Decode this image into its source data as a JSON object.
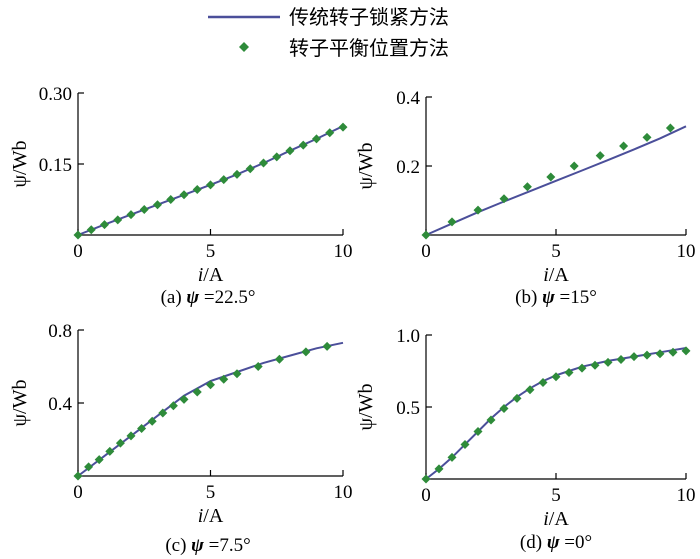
{
  "legend": [
    {
      "label": "传统转子锁紧方法",
      "kind": "line",
      "color": "#4b4f9a"
    },
    {
      "label": "转子平衡位置方法",
      "kind": "marker",
      "color": "#2e8b3a"
    }
  ],
  "chart_data": [
    {
      "type": "line",
      "caption": "(a) ψ =22.5°",
      "caption_prefix": "(a) ",
      "caption_symbol": "ψ",
      "caption_suffix": " =22.5°",
      "xlabel_var": "i",
      "xlabel_unit": "/A",
      "ylabel": "ψ/Wb",
      "xlim": [
        0,
        10
      ],
      "ylim": [
        0,
        0.3
      ],
      "xticks": [
        0,
        5,
        10
      ],
      "yticks": [
        0.15,
        0.3
      ],
      "xtick_labels": [
        "0",
        "5",
        "10"
      ],
      "ytick_labels": [
        "0.15",
        "0.30"
      ],
      "series": [
        {
          "name": "传统转子锁紧方法",
          "type": "line",
          "x": [
            0,
            1,
            2,
            3,
            4,
            5,
            6,
            7,
            8,
            9,
            10
          ],
          "y": [
            0.0,
            0.022,
            0.043,
            0.064,
            0.085,
            0.106,
            0.128,
            0.152,
            0.178,
            0.203,
            0.23
          ]
        },
        {
          "name": "转子平衡位置方法",
          "type": "scatter",
          "x": [
            0,
            0.5,
            1.0,
            1.5,
            2.0,
            2.5,
            3.0,
            3.5,
            4.0,
            4.5,
            5.0,
            5.5,
            6.0,
            6.5,
            7.0,
            7.5,
            8.0,
            8.5,
            9.0,
            9.5,
            10.0
          ],
          "y": [
            0.0,
            0.011,
            0.022,
            0.032,
            0.043,
            0.054,
            0.064,
            0.075,
            0.085,
            0.096,
            0.106,
            0.117,
            0.128,
            0.14,
            0.152,
            0.165,
            0.178,
            0.19,
            0.203,
            0.216,
            0.228
          ]
        }
      ]
    },
    {
      "type": "line",
      "caption": "(b) ψ =15°",
      "caption_prefix": "(b) ",
      "caption_symbol": "ψ",
      "caption_suffix": " =15°",
      "xlabel_var": "i",
      "xlabel_unit": "/A",
      "ylabel": "ψ/Wb",
      "xlim": [
        0,
        10
      ],
      "ylim": [
        0,
        0.4
      ],
      "xticks": [
        0,
        5,
        10
      ],
      "yticks": [
        0.2,
        0.4
      ],
      "xtick_labels": [
        "0",
        "5",
        "10"
      ],
      "ytick_labels": [
        "0.2",
        "0.4"
      ],
      "series": [
        {
          "name": "传统转子锁紧方法",
          "type": "line",
          "x": [
            0,
            1,
            2,
            3,
            4,
            5,
            6,
            7,
            8,
            9,
            10
          ],
          "y": [
            0.0,
            0.033,
            0.066,
            0.097,
            0.127,
            0.157,
            0.187,
            0.217,
            0.248,
            0.28,
            0.315
          ]
        },
        {
          "name": "转子平衡位置方法",
          "type": "scatter",
          "x": [
            0,
            1.0,
            2.0,
            3.0,
            3.9,
            4.8,
            5.7,
            6.7,
            7.6,
            8.5,
            9.4
          ],
          "y": [
            0.0,
            0.038,
            0.072,
            0.105,
            0.14,
            0.168,
            0.2,
            0.23,
            0.258,
            0.283,
            0.31
          ]
        }
      ]
    },
    {
      "type": "line",
      "caption": "(c) ψ =7.5°",
      "caption_prefix": "(c) ",
      "caption_symbol": "ψ",
      "caption_suffix": " =7.5°",
      "xlabel_var": "i",
      "xlabel_unit": "/A",
      "ylabel": "ψ/Wb",
      "xlim": [
        0,
        10
      ],
      "ylim": [
        0,
        0.8
      ],
      "xticks": [
        0,
        5,
        10
      ],
      "yticks": [
        0.4,
        0.8
      ],
      "xtick_labels": [
        "0",
        "5",
        "10"
      ],
      "ytick_labels": [
        "0.4",
        "0.8"
      ],
      "series": [
        {
          "name": "传统转子锁紧方法",
          "type": "line",
          "x": [
            0,
            1,
            2,
            3,
            4,
            5,
            6,
            7,
            8,
            9,
            10
          ],
          "y": [
            0.0,
            0.11,
            0.22,
            0.33,
            0.44,
            0.52,
            0.57,
            0.62,
            0.66,
            0.7,
            0.73
          ]
        },
        {
          "name": "转子平衡位置方法",
          "type": "scatter",
          "x": [
            0,
            0.4,
            0.8,
            1.2,
            1.6,
            2.0,
            2.4,
            2.8,
            3.2,
            3.6,
            4.0,
            4.5,
            5.0,
            5.5,
            6.0,
            6.8,
            7.6,
            8.6,
            9.4
          ],
          "y": [
            0.0,
            0.05,
            0.09,
            0.135,
            0.18,
            0.22,
            0.26,
            0.3,
            0.345,
            0.385,
            0.42,
            0.46,
            0.5,
            0.53,
            0.56,
            0.6,
            0.64,
            0.68,
            0.71
          ]
        }
      ]
    },
    {
      "type": "line",
      "caption": "(d) ψ =0°",
      "caption_prefix": "(d) ",
      "caption_symbol": "ψ",
      "caption_suffix": " =0°",
      "xlabel_var": "i",
      "xlabel_unit": "/A",
      "ylabel": "ψ/Wb",
      "xlim": [
        0,
        10
      ],
      "ylim": [
        0,
        1.0
      ],
      "xticks": [
        0,
        5,
        10
      ],
      "yticks": [
        0.5,
        1.0
      ],
      "xtick_labels": [
        "0",
        "5",
        "10"
      ],
      "ytick_labels": [
        "0.5",
        "1.0"
      ],
      "series": [
        {
          "name": "传统转子锁紧方法",
          "type": "line",
          "x": [
            0,
            0.5,
            1,
            1.5,
            2,
            2.5,
            3,
            3.5,
            4,
            4.5,
            5,
            5.5,
            6,
            7,
            8,
            9,
            10
          ],
          "y": [
            0.0,
            0.07,
            0.15,
            0.24,
            0.33,
            0.42,
            0.5,
            0.57,
            0.63,
            0.68,
            0.72,
            0.75,
            0.78,
            0.82,
            0.85,
            0.88,
            0.91
          ]
        },
        {
          "name": "转子平衡位置方法",
          "type": "scatter",
          "x": [
            0,
            0.5,
            1.0,
            1.5,
            2.0,
            2.5,
            3.0,
            3.5,
            4.0,
            4.5,
            5.0,
            5.5,
            6.0,
            6.5,
            7.0,
            7.5,
            8.0,
            8.5,
            9.0,
            9.5,
            10.0
          ],
          "y": [
            0.0,
            0.07,
            0.15,
            0.24,
            0.33,
            0.41,
            0.49,
            0.56,
            0.62,
            0.67,
            0.71,
            0.74,
            0.77,
            0.79,
            0.81,
            0.83,
            0.85,
            0.86,
            0.87,
            0.88,
            0.89
          ]
        }
      ]
    }
  ]
}
